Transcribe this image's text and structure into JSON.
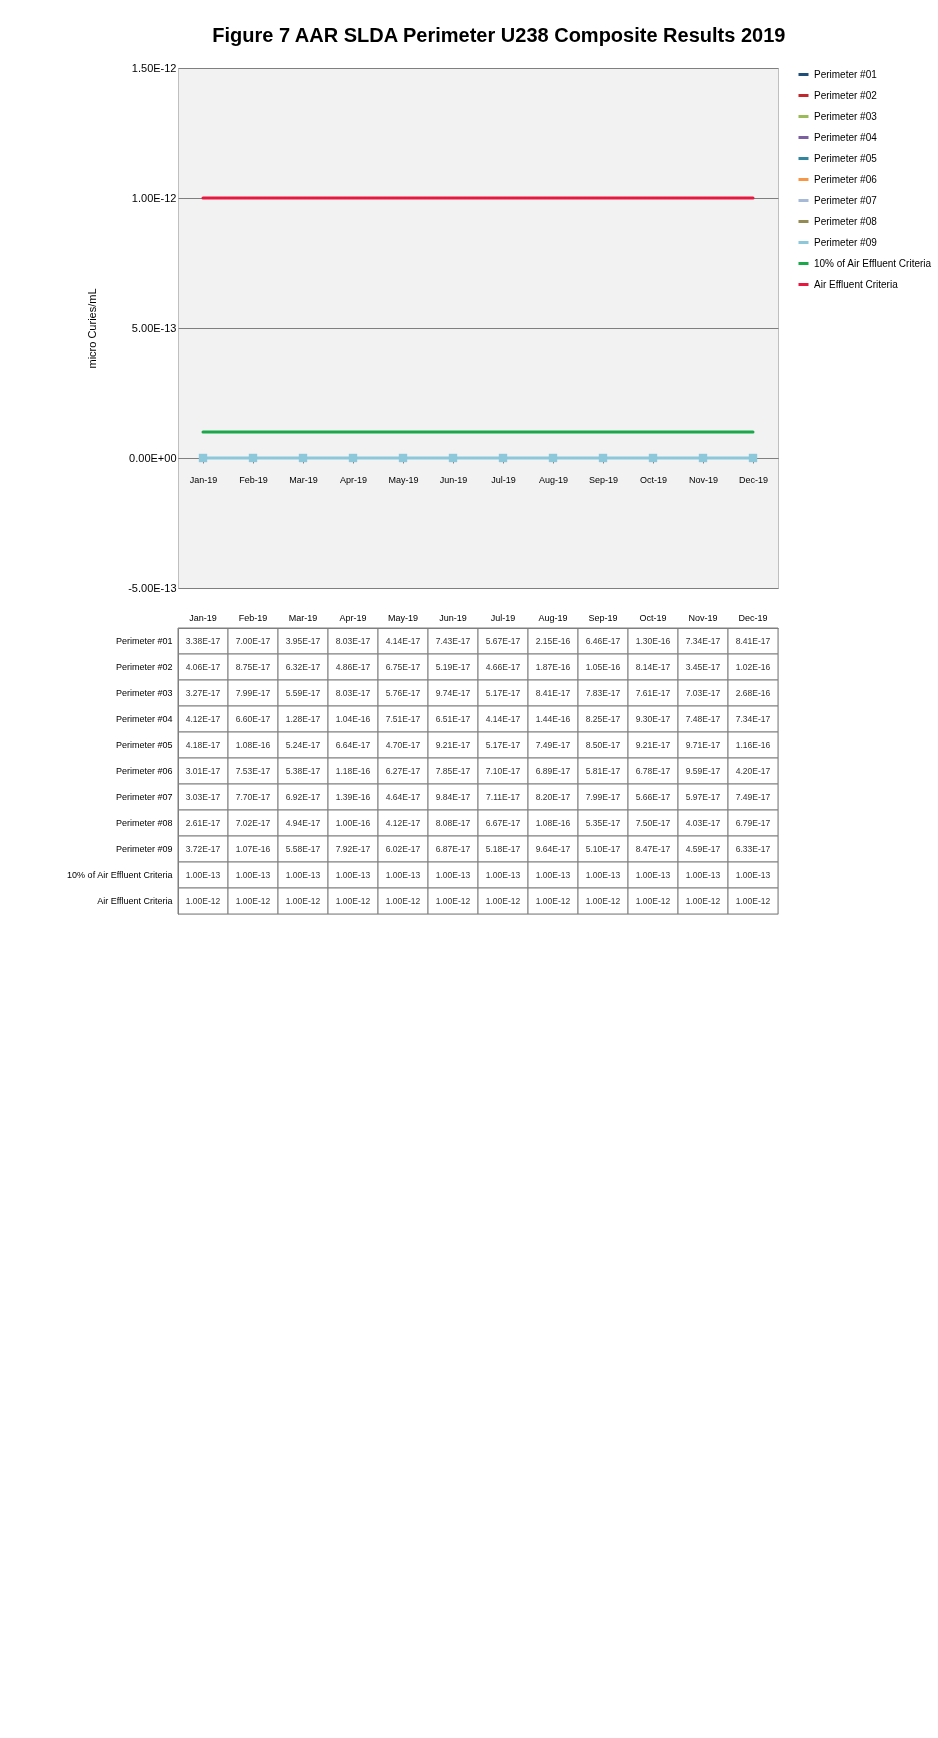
{
  "chart_data": {
    "type": "line",
    "title": "Figure 7 AAR SLDA Perimeter U238 Composite Results 2019",
    "ylabel": "micro Curies/mL",
    "categories": [
      "Jan-19",
      "Feb-19",
      "Mar-19",
      "Apr-19",
      "May-19",
      "Jun-19",
      "Jul-19",
      "Aug-19",
      "Sep-19",
      "Oct-19",
      "Nov-19",
      "Dec-19"
    ],
    "ylim": [
      -5e-13,
      1.5e-12
    ],
    "yticks": [
      {
        "value": -5e-13,
        "label": "-5.00E-13"
      },
      {
        "value": 0,
        "label": "0.00E+00"
      },
      {
        "value": 5e-13,
        "label": "5.00E-13"
      },
      {
        "value": 1e-12,
        "label": "1.00E-12"
      },
      {
        "value": 1.5e-12,
        "label": "1.50E-12"
      }
    ],
    "grid": "y",
    "legend": "right",
    "marker": "square",
    "series": [
      {
        "name": "Perimeter #01",
        "color": "#1f4e79",
        "values": [
          null,
          null,
          null,
          null,
          null,
          null,
          null,
          null,
          null,
          null,
          null,
          null
        ],
        "value_labels": [
          "3.38E-17",
          "7.00E-17",
          "3.95E-17",
          "8.03E-17",
          "4.14E-17",
          "7.43E-17",
          "5.67E-17",
          "2.15E-16",
          "6.46E-17",
          "1.30E-16",
          "7.34E-17",
          "8.41E-17"
        ]
      },
      {
        "name": "Perimeter #02",
        "color": "#c0282d",
        "values": [
          null,
          null,
          null,
          null,
          null,
          null,
          null,
          null,
          null,
          null,
          null,
          null
        ],
        "value_labels": [
          "4.06E-17",
          "8.75E-17",
          "6.32E-17",
          "4.86E-17",
          "6.75E-17",
          "5.19E-17",
          "4.66E-17",
          "1.87E-16",
          "1.05E-16",
          "8.14E-17",
          "3.45E-17",
          "1.02E-16"
        ]
      },
      {
        "name": "Perimeter #03",
        "color": "#9bbb59",
        "values": [
          null,
          null,
          null,
          null,
          null,
          null,
          null,
          null,
          null,
          null,
          null,
          null
        ],
        "value_labels": [
          "3.27E-17",
          "7.99E-17",
          "5.59E-17",
          "8.03E-17",
          "5.76E-17",
          "9.74E-17",
          "5.17E-17",
          "8.41E-17",
          "7.83E-17",
          "7.61E-17",
          "7.03E-17",
          "2.68E-16"
        ]
      },
      {
        "name": "Perimeter #04",
        "color": "#7b5fa0",
        "values": [
          null,
          null,
          null,
          null,
          null,
          null,
          null,
          null,
          null,
          null,
          null,
          null
        ],
        "value_labels": [
          "4.12E-17",
          "6.60E-17",
          "1.28E-17",
          "1.04E-16",
          "7.51E-17",
          "6.51E-17",
          "4.14E-17",
          "1.44E-16",
          "8.25E-17",
          "9.30E-17",
          "7.48E-17",
          "7.34E-17"
        ]
      },
      {
        "name": "Perimeter #05",
        "color": "#31859c",
        "values": [
          null,
          null,
          null,
          null,
          null,
          null,
          null,
          null,
          null,
          null,
          null,
          null
        ],
        "value_labels": [
          "4.18E-17",
          "1.08E-16",
          "5.24E-17",
          "6.64E-17",
          "4.70E-17",
          "9.21E-17",
          "5.17E-17",
          "7.49E-17",
          "8.50E-17",
          "9.21E-17",
          "9.71E-17",
          "1.16E-16"
        ]
      },
      {
        "name": "Perimeter #06",
        "color": "#f79646",
        "values": [
          null,
          null,
          null,
          null,
          null,
          null,
          null,
          null,
          null,
          null,
          null,
          null
        ],
        "value_labels": [
          "3.01E-17",
          "7.53E-17",
          "5.38E-17",
          "1.18E-16",
          "6.27E-17",
          "7.85E-17",
          "7.10E-17",
          "6.89E-17",
          "5.81E-17",
          "6.78E-17",
          "9.59E-17",
          "4.20E-17"
        ]
      },
      {
        "name": "Perimeter #07",
        "color": "#a6b9d6",
        "values": [
          null,
          null,
          null,
          null,
          null,
          null,
          null,
          null,
          null,
          null,
          null,
          null
        ],
        "value_labels": [
          "3.03E-17",
          "7.70E-17",
          "6.92E-17",
          "1.39E-16",
          "4.64E-17",
          "9.84E-17",
          "7.11E-17",
          "8.20E-17",
          "7.99E-17",
          "5.66E-17",
          "5.97E-17",
          "7.49E-17"
        ]
      },
      {
        "name": "Perimeter #08",
        "color": "#948a54",
        "values": [
          null,
          null,
          null,
          null,
          null,
          null,
          null,
          null,
          null,
          null,
          null,
          null
        ],
        "value_labels": [
          "2.61E-17",
          "7.02E-17",
          "4.94E-17",
          "1.00E-16",
          "4.12E-17",
          "8.08E-17",
          "6.67E-17",
          "1.08E-16",
          "5.35E-17",
          "7.50E-17",
          "4.03E-17",
          "6.79E-17"
        ]
      },
      {
        "name": "Perimeter #09",
        "color": "#8cc7da",
        "values": [
          3.72e-17,
          1.07e-16,
          5.58e-17,
          7.92e-17,
          6.02e-17,
          6.87e-17,
          5.18e-17,
          9.64e-17,
          5.1e-17,
          8.47e-17,
          4.59e-17,
          6.33e-17
        ],
        "value_labels": [
          "3.72E-17",
          "1.07E-16",
          "5.58E-17",
          "7.92E-17",
          "6.02E-17",
          "6.87E-17",
          "5.18E-17",
          "9.64E-17",
          "5.10E-17",
          "8.47E-17",
          "4.59E-17",
          "6.33E-17"
        ]
      },
      {
        "name": "10% of Air Effluent Criteria",
        "color": "#1aa84a",
        "marker": "none",
        "values": [
          1e-13,
          1e-13,
          1e-13,
          1e-13,
          1e-13,
          1e-13,
          1e-13,
          1e-13,
          1e-13,
          1e-13,
          1e-13,
          1e-13
        ],
        "value_labels": [
          "1.00E-13",
          "1.00E-13",
          "1.00E-13",
          "1.00E-13",
          "1.00E-13",
          "1.00E-13",
          "1.00E-13",
          "1.00E-13",
          "1.00E-13",
          "1.00E-13",
          "1.00E-13",
          "1.00E-13"
        ]
      },
      {
        "name": "Air Effluent Criteria",
        "color": "#e8173f",
        "marker": "none",
        "values": [
          1e-12,
          1e-12,
          1e-12,
          1e-12,
          1e-12,
          1e-12,
          1e-12,
          1e-12,
          1e-12,
          1e-12,
          1e-12,
          1e-12
        ],
        "value_labels": [
          "1.00E-12",
          "1.00E-12",
          "1.00E-12",
          "1.00E-12",
          "1.00E-12",
          "1.00E-12",
          "1.00E-12",
          "1.00E-12",
          "1.00E-12",
          "1.00E-12",
          "1.00E-12",
          "1.00E-12"
        ]
      }
    ]
  }
}
